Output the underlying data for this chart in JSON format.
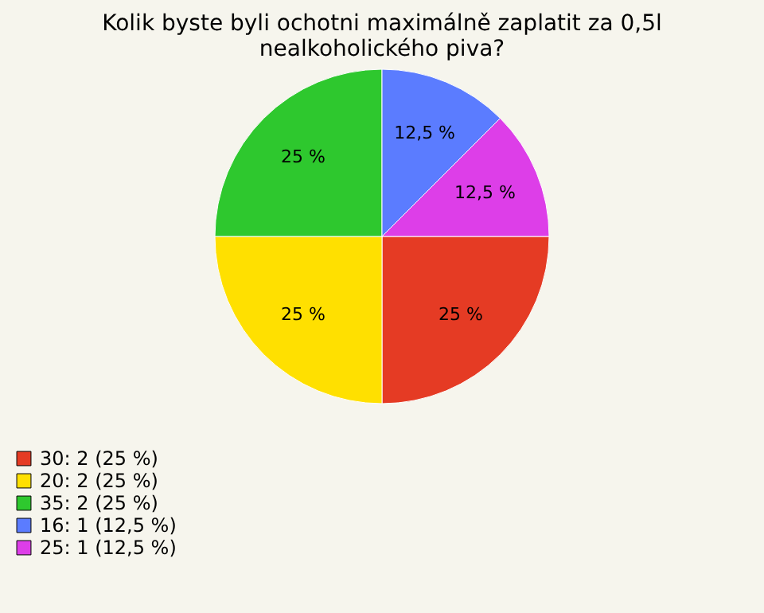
{
  "chart_data": {
    "type": "pie",
    "title": "Kolik byste byli ochotni maximálně zaplatit za 0,5l nealkoholického piva?",
    "categories": [
      "30: 2 (25 %)",
      "20: 2 (25 %)",
      "35: 2 (25 %)",
      "16: 1 (12,5 %)",
      "25: 1 (12,5 %)"
    ],
    "values": [
      25,
      25,
      25,
      12.5,
      12.5
    ],
    "value_labels": [
      "25 %",
      "25 %",
      "25 %",
      "12,5 %",
      "12,5 %"
    ],
    "colors": [
      "#e53b24",
      "#ffe000",
      "#2ec82e",
      "#5b7cff",
      "#dd3ee8"
    ],
    "legend": "bottom left"
  }
}
